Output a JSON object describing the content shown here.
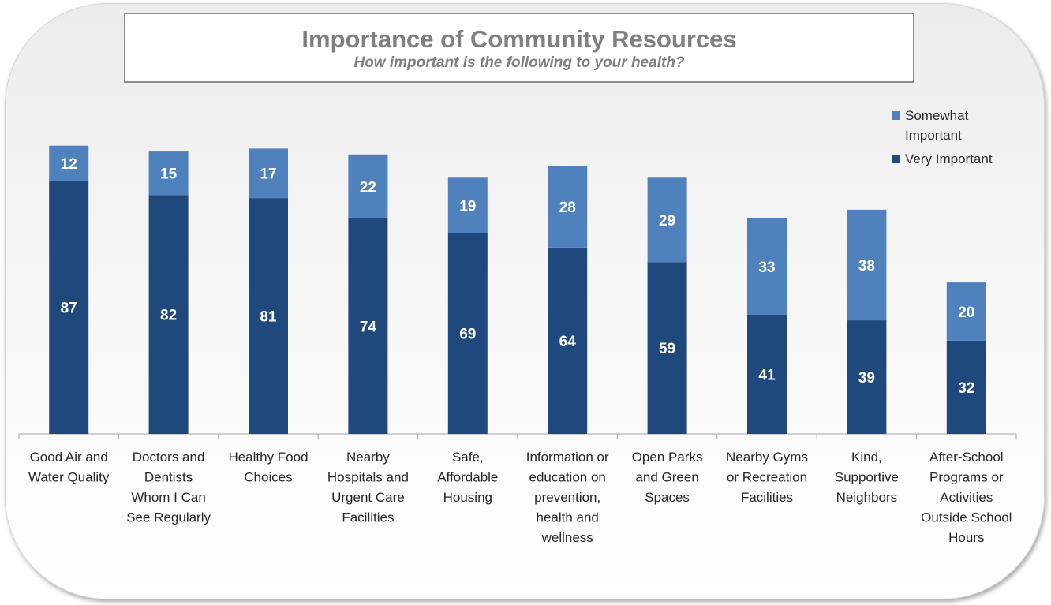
{
  "chart_data": {
    "type": "bar",
    "stacked": true,
    "title": "Importance of Community Resources",
    "subtitle": "How important is the following to your health?",
    "categories": [
      [
        "Good Air and",
        "Water Quality"
      ],
      [
        "Doctors and",
        "Dentists",
        "Whom I Can",
        "See Regularly"
      ],
      [
        "Healthy Food",
        "Choices"
      ],
      [
        "Nearby",
        "Hospitals and",
        "Urgent Care",
        "Facilities"
      ],
      [
        "Safe,",
        "Affordable",
        "Housing"
      ],
      [
        "Information or",
        "education on",
        "prevention,",
        "health and",
        "wellness"
      ],
      [
        "Open Parks",
        "and Green",
        "Spaces"
      ],
      [
        "Nearby Gyms",
        "or Recreation",
        "Facilities"
      ],
      [
        "Kind,",
        "Supportive",
        "Neighbors"
      ],
      [
        "After-School",
        "Programs or",
        "Activities",
        "Outside School",
        "Hours"
      ]
    ],
    "series": [
      {
        "name": "Very Important",
        "color": "#1f497d",
        "values": [
          87,
          82,
          81,
          74,
          69,
          64,
          59,
          41,
          39,
          32
        ]
      },
      {
        "name": "Somewhat Important",
        "color": "#4f81bd",
        "values": [
          12,
          15,
          17,
          22,
          19,
          28,
          29,
          33,
          38,
          20
        ]
      }
    ],
    "legend": {
      "position": "top-right",
      "entries": [
        {
          "label": [
            "Somewhat",
            "Important"
          ],
          "color": "#4f81bd"
        },
        {
          "label": [
            "Very Important"
          ],
          "color": "#1f497d"
        }
      ]
    },
    "ylim": [
      0,
      100
    ],
    "grid": false,
    "data_labels": true
  }
}
